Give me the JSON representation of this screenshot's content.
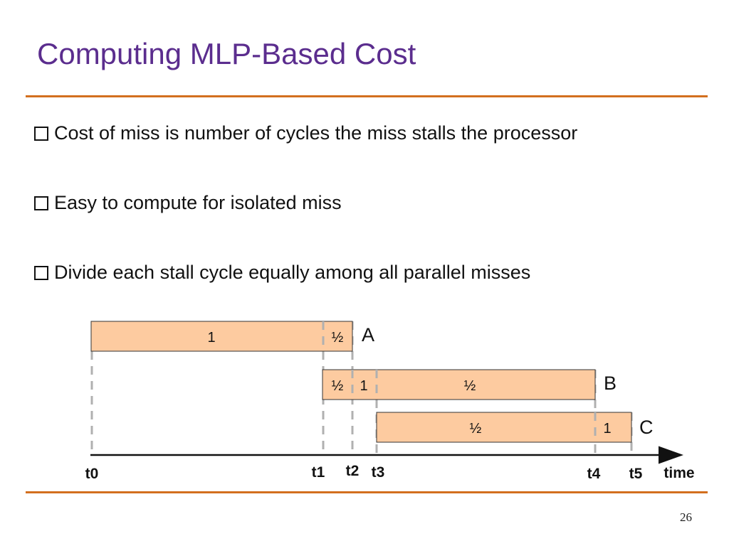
{
  "title": "Computing MLP-Based Cost",
  "bullets": [
    "Cost of miss is number of cycles the miss stalls the processor",
    "Easy to compute for isolated miss",
    "Divide each stall cycle equally among all parallel misses"
  ],
  "diagram": {
    "misses": [
      {
        "name": "A",
        "segments": [
          "1",
          "½"
        ]
      },
      {
        "name": "B",
        "segments": [
          "½",
          "1",
          "½"
        ]
      },
      {
        "name": "C",
        "segments": [
          "½",
          "1"
        ]
      }
    ],
    "time_labels": [
      "t0",
      "t1",
      "t2",
      "t3",
      "t4",
      "t5"
    ],
    "axis_label": "time",
    "colors": {
      "bar_fill": "#fdcba0",
      "rule": "#d36f1e",
      "title": "#5b2d8e"
    }
  },
  "page_number": "26"
}
